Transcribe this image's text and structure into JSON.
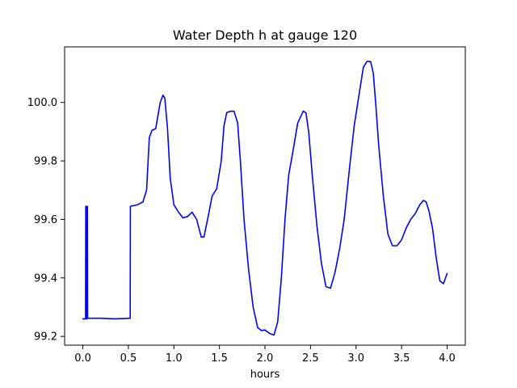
{
  "chart_data": {
    "type": "line",
    "title": "Water Depth h at gauge 120",
    "xlabel": "hours",
    "ylabel": "",
    "xlim": [
      -0.2,
      4.2
    ],
    "ylim": [
      99.17,
      100.19
    ],
    "xticks": [
      0.0,
      0.5,
      1.0,
      1.5,
      2.0,
      2.5,
      3.0,
      3.5,
      4.0
    ],
    "xtick_labels": [
      "0.0",
      "0.5",
      "1.0",
      "1.5",
      "2.0",
      "2.5",
      "3.0",
      "3.5",
      "4.0"
    ],
    "yticks": [
      99.2,
      99.4,
      99.6,
      99.8,
      100.0
    ],
    "ytick_labels": [
      "99.2",
      "99.4",
      "99.6",
      "99.8",
      "100.0"
    ],
    "grid": false,
    "line_color": "#0000ff",
    "series": [
      {
        "x": [
          0.0,
          0.03,
          0.032,
          0.034,
          0.045,
          0.047,
          0.05,
          0.052,
          0.1,
          0.2,
          0.35,
          0.52,
          0.522,
          0.6,
          0.66,
          0.7,
          0.73,
          0.76,
          0.8,
          0.85,
          0.88,
          0.9,
          0.93,
          0.96,
          1.0,
          1.05,
          1.1,
          1.15,
          1.2,
          1.25,
          1.3,
          1.33,
          1.37,
          1.42,
          1.47,
          1.52,
          1.55,
          1.58,
          1.62,
          1.66,
          1.7,
          1.73,
          1.77,
          1.82,
          1.87,
          1.92,
          1.96,
          2.0,
          2.05,
          2.1,
          2.14,
          2.18,
          2.22,
          2.26,
          2.3,
          2.36,
          2.42,
          2.45,
          2.48,
          2.52,
          2.57,
          2.62,
          2.67,
          2.72,
          2.77,
          2.82,
          2.87,
          2.93,
          2.98,
          3.03,
          3.08,
          3.12,
          3.16,
          3.19,
          3.22,
          3.25,
          3.3,
          3.35,
          3.4,
          3.45,
          3.5,
          3.55,
          3.6,
          3.65,
          3.7,
          3.74,
          3.77,
          3.8,
          3.84,
          3.88,
          3.92,
          3.96,
          4.0
        ],
        "y": [
          99.26,
          99.26,
          99.645,
          99.26,
          99.26,
          99.645,
          99.645,
          99.262,
          99.262,
          99.262,
          99.26,
          99.262,
          99.645,
          99.65,
          99.66,
          99.7,
          99.88,
          99.905,
          99.91,
          100.0,
          100.025,
          100.015,
          99.91,
          99.74,
          99.65,
          99.625,
          99.605,
          99.61,
          99.625,
          99.6,
          99.54,
          99.54,
          99.6,
          99.68,
          99.705,
          99.8,
          99.92,
          99.965,
          99.97,
          99.97,
          99.93,
          99.8,
          99.6,
          99.43,
          99.3,
          99.23,
          99.22,
          99.222,
          99.21,
          99.205,
          99.25,
          99.4,
          99.6,
          99.75,
          99.82,
          99.93,
          99.97,
          99.965,
          99.9,
          99.75,
          99.58,
          99.45,
          99.37,
          99.365,
          99.42,
          99.5,
          99.6,
          99.78,
          99.92,
          100.02,
          100.12,
          100.14,
          100.14,
          100.1,
          99.98,
          99.85,
          99.68,
          99.55,
          99.51,
          99.51,
          99.53,
          99.57,
          99.6,
          99.62,
          99.65,
          99.665,
          99.66,
          99.63,
          99.57,
          99.47,
          99.39,
          99.38,
          99.415
        ]
      }
    ]
  }
}
